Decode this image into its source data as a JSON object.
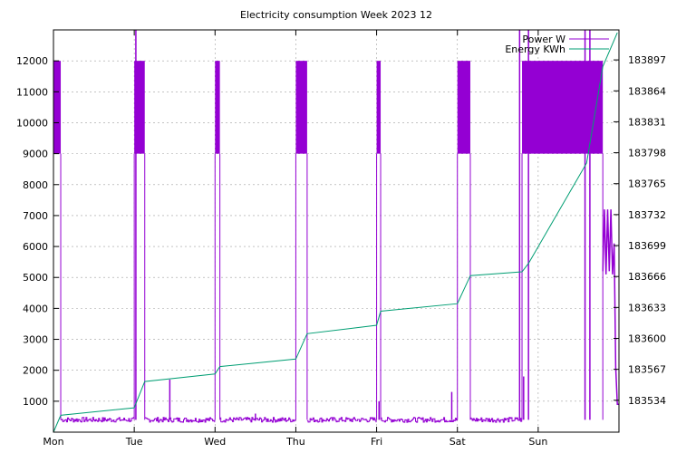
{
  "chart_data": {
    "type": "line",
    "title": "Electricity consumption Week 2023 12",
    "x_axis": {
      "tick_labels": [
        "Mon",
        "Tue",
        "Wed",
        "Thu",
        "Fri",
        "Sat",
        "Sun"
      ],
      "range_days": [
        0,
        7
      ]
    },
    "y_left": {
      "range": [
        0,
        13000
      ],
      "ticks": [
        1000,
        2000,
        3000,
        4000,
        5000,
        6000,
        7000,
        8000,
        9000,
        10000,
        11000,
        12000
      ]
    },
    "y_right": {
      "range": [
        183500,
        183929
      ],
      "ticks": [
        183534,
        183567,
        183600,
        183633,
        183666,
        183699,
        183732,
        183765,
        183798,
        183831,
        183864,
        183897
      ]
    },
    "grid": true,
    "legend_position": "top-right",
    "series": [
      {
        "name": "Power W",
        "axis": "left",
        "color": "#9400d3",
        "baseline": 400,
        "blocks": [
          {
            "start": 0.0,
            "end": 0.09,
            "low": 9000,
            "high": 12000
          },
          {
            "start": 1.0,
            "end": 1.13,
            "low": 9000,
            "high": 12000
          },
          {
            "start": 2.0,
            "end": 2.06,
            "low": 9000,
            "high": 12000
          },
          {
            "start": 3.0,
            "end": 3.14,
            "low": 9000,
            "high": 12000
          },
          {
            "start": 4.0,
            "end": 4.05,
            "low": 9000,
            "high": 12000
          },
          {
            "start": 5.0,
            "end": 5.16,
            "low": 9000,
            "high": 12000
          },
          {
            "start": 5.8,
            "end": 6.8,
            "low": 9000,
            "high": 12000
          }
        ],
        "spikes": [
          {
            "x": 1.02,
            "y": 13000
          },
          {
            "x": 1.44,
            "y": 1700
          },
          {
            "x": 2.5,
            "y": 600
          },
          {
            "x": 4.03,
            "y": 1000
          },
          {
            "x": 4.93,
            "y": 1300
          },
          {
            "x": 5.77,
            "y": 13000
          },
          {
            "x": 5.82,
            "y": 1800
          },
          {
            "x": 5.88,
            "y": 13000
          },
          {
            "x": 6.58,
            "y": 13000
          },
          {
            "x": 6.64,
            "y": 13000
          }
        ],
        "sun_tail": [
          {
            "x": 6.8,
            "y": 5200
          },
          {
            "x": 6.82,
            "y": 7200
          },
          {
            "x": 6.84,
            "y": 5100
          },
          {
            "x": 6.86,
            "y": 7200
          },
          {
            "x": 6.88,
            "y": 5200
          },
          {
            "x": 6.9,
            "y": 7200
          },
          {
            "x": 6.92,
            "y": 5100
          },
          {
            "x": 6.94,
            "y": 6100
          },
          {
            "x": 6.96,
            "y": 2100
          },
          {
            "x": 6.98,
            "y": 900
          },
          {
            "x": 7.0,
            "y": 900
          }
        ]
      },
      {
        "name": "Energy KWh",
        "axis": "right",
        "color": "#009e73",
        "x": [
          0.0,
          0.09,
          1.0,
          1.13,
          2.0,
          2.06,
          3.0,
          3.14,
          4.0,
          4.05,
          5.0,
          5.16,
          5.8,
          5.88,
          6.6,
          6.8,
          6.98
        ],
        "y": [
          183500,
          183518,
          183526,
          183554,
          183562,
          183570,
          183578,
          183605,
          183614,
          183629,
          183637,
          183667,
          183671,
          183680,
          183787,
          183890,
          183926
        ]
      }
    ]
  }
}
